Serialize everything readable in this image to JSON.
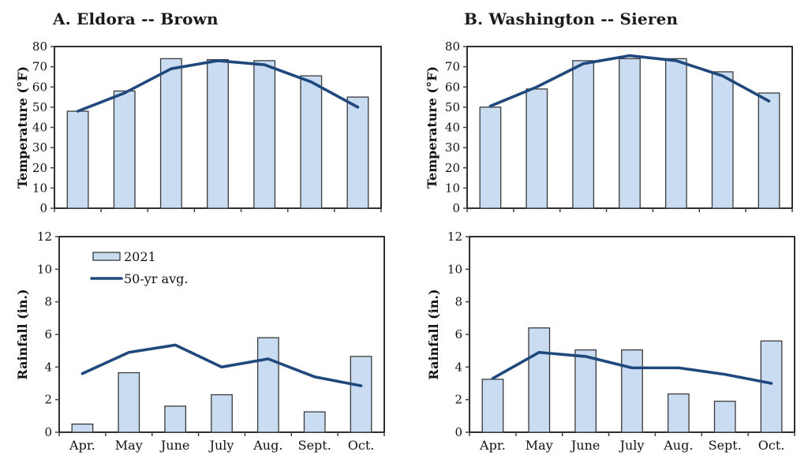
{
  "page": {
    "background": "#ffffff"
  },
  "colors": {
    "bar_fill": "#C9DCF1",
    "bar_stroke": "#3A3A3A",
    "line": "#1F497D",
    "axis": "#1A1A1A",
    "tick_mark": "#444444",
    "text": "#111111"
  },
  "months": [
    "Apr.",
    "May",
    "June",
    "July",
    "Aug.",
    "Sept.",
    "Oct."
  ],
  "chart_data": [
    {
      "id": "eldora-temperature",
      "type": "bar+line",
      "title": "A. Eldora -- Brown",
      "categories": [
        "Apr.",
        "May",
        "June",
        "July",
        "Aug.",
        "Sept.",
        "Oct."
      ],
      "show_x_labels": false,
      "xlabel": "",
      "ylabel": "Temperature (°F)",
      "ylim": [
        0,
        80
      ],
      "ytick_step": 10,
      "grid": false,
      "legend_visible": false,
      "series": [
        {
          "name": "2021",
          "type": "bar",
          "values": [
            48,
            58,
            74,
            73.5,
            73,
            65.5,
            55
          ]
        },
        {
          "name": "50-yr avg.",
          "type": "line",
          "values": [
            48,
            57,
            69,
            73,
            71,
            62.5,
            50
          ]
        }
      ]
    },
    {
      "id": "washington-temperature",
      "type": "bar+line",
      "title": "B. Washington -- Sieren",
      "categories": [
        "Apr.",
        "May",
        "June",
        "July",
        "Aug.",
        "Sept.",
        "Oct."
      ],
      "show_x_labels": false,
      "xlabel": "",
      "ylabel": "Temperature (°F)",
      "ylim": [
        0,
        80
      ],
      "ytick_step": 10,
      "grid": false,
      "legend_visible": false,
      "series": [
        {
          "name": "2021",
          "type": "bar",
          "values": [
            50,
            59,
            73,
            74,
            74,
            67.5,
            57
          ]
        },
        {
          "name": "50-yr avg.",
          "type": "line",
          "values": [
            50.5,
            60,
            71.5,
            75.5,
            73,
            65.5,
            53
          ]
        }
      ]
    },
    {
      "id": "eldora-rainfall",
      "type": "bar+line",
      "title": "",
      "categories": [
        "Apr.",
        "May",
        "June",
        "July",
        "Aug.",
        "Sept.",
        "Oct."
      ],
      "show_x_labels": true,
      "xlabel": "",
      "ylabel": "Rainfall (in.)",
      "ylim": [
        0,
        12
      ],
      "ytick_step": 2,
      "grid": false,
      "legend_visible": true,
      "legend_position": "upper-left-inside",
      "series": [
        {
          "name": "2021",
          "type": "bar",
          "values": [
            0.5,
            3.65,
            1.6,
            2.3,
            5.8,
            1.25,
            4.65
          ]
        },
        {
          "name": "50-yr avg.",
          "type": "line",
          "values": [
            3.6,
            4.9,
            5.35,
            4.0,
            4.5,
            3.4,
            2.85
          ]
        }
      ]
    },
    {
      "id": "washington-rainfall",
      "type": "bar+line",
      "title": "",
      "categories": [
        "Apr.",
        "May",
        "June",
        "July",
        "Aug.",
        "Sept.",
        "Oct."
      ],
      "show_x_labels": true,
      "xlabel": "",
      "ylabel": "Rainfall (in.)",
      "ylim": [
        0,
        12
      ],
      "ytick_step": 2,
      "grid": false,
      "legend_visible": false,
      "series": [
        {
          "name": "2021",
          "type": "bar",
          "values": [
            3.25,
            6.4,
            5.05,
            5.05,
            2.35,
            1.9,
            5.6
          ]
        },
        {
          "name": "50-yr avg.",
          "type": "line",
          "values": [
            3.3,
            4.9,
            4.65,
            3.95,
            3.95,
            3.55,
            3.0
          ]
        }
      ]
    }
  ]
}
